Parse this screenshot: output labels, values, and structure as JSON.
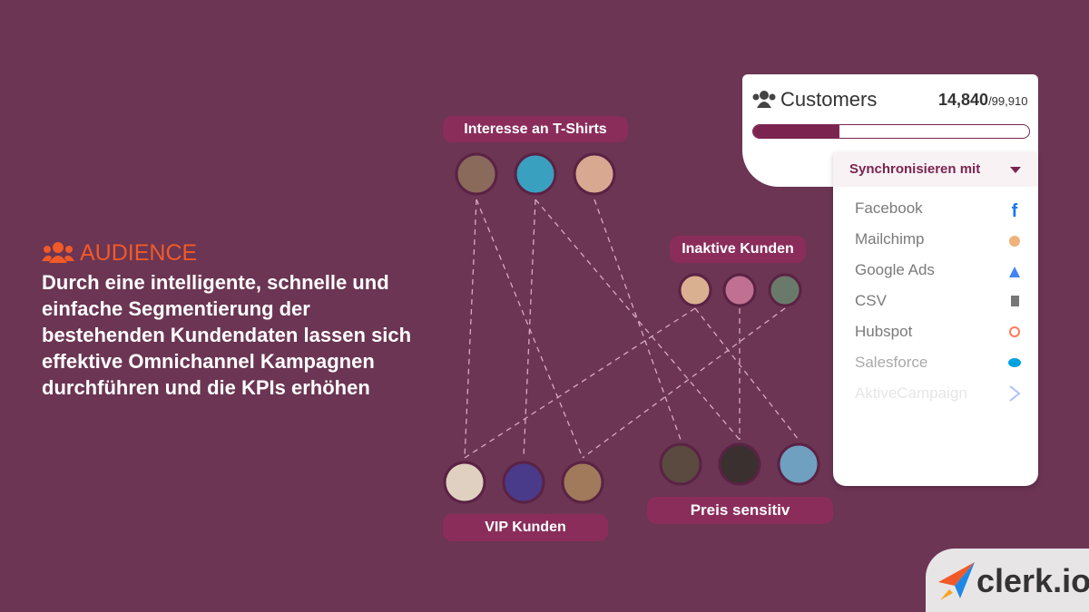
{
  "audience": {
    "label": "AUDIENCE",
    "text": "Durch eine intelligente, schnelle und einfache Segmentierung der bestehenden Kundendaten lassen sich effektive Omnichannel Kampagnen durchführen und die KPIs erhöhen"
  },
  "segments": [
    {
      "label": "Interesse an T-Shirts"
    },
    {
      "label": "Inaktive Kunden"
    },
    {
      "label": "VIP Kunden"
    },
    {
      "label": "Preis sensitiv"
    }
  ],
  "customers": {
    "title": "Customers",
    "count": "14,840",
    "total": "/99,910"
  },
  "sync": {
    "label": "Synchronisieren mit",
    "items": [
      "Facebook",
      "Mailchimp",
      "Google Ads",
      "CSV",
      "Hubspot",
      "Salesforce",
      "AktiveCampaign"
    ]
  },
  "logo": "clerk.io"
}
